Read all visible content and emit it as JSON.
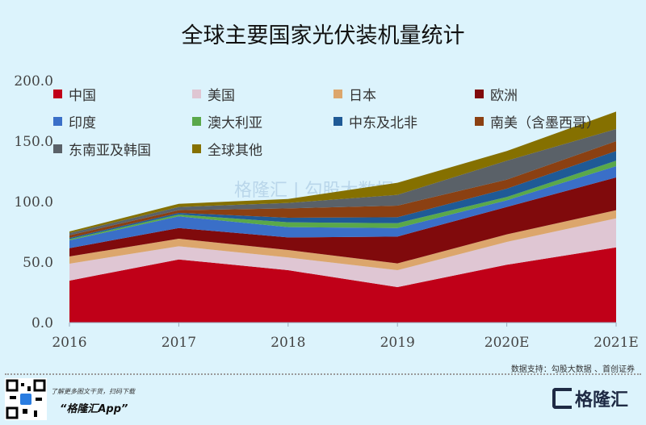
{
  "title": "全球主要国家光伏装机量统计",
  "chart_data": {
    "type": "area",
    "stacked": true,
    "title": "全球主要国家光伏装机量统计",
    "categories": [
      "2016",
      "2017",
      "2018",
      "2019",
      "2020E",
      "2021E"
    ],
    "ylim": [
      0,
      200
    ],
    "yticks": [
      "0.0",
      "50.0",
      "100.0",
      "150.0",
      "200.0"
    ],
    "grid": false,
    "legend_position": "top-left",
    "series": [
      {
        "name": "中国",
        "color": "#c00018",
        "values": [
          34.7,
          52.2,
          43.3,
          29.3,
          47.8,
          62.2
        ]
      },
      {
        "name": "美国",
        "color": "#dfc6d3",
        "values": [
          14.0,
          10.9,
          10.5,
          14.0,
          18.9,
          24.0
        ]
      },
      {
        "name": "日本",
        "color": "#dca66c",
        "values": [
          6.0,
          6.2,
          6.2,
          5.6,
          6.2,
          6.7
        ]
      },
      {
        "name": "欧洲",
        "color": "#800a0c",
        "values": [
          6.8,
          8.9,
          10.4,
          22.2,
          22.7,
          27.1
        ]
      },
      {
        "name": "印度",
        "color": "#3a6fc8",
        "values": [
          6.5,
          9.6,
          8.5,
          7.1,
          5.5,
          9.3
        ]
      },
      {
        "name": "澳大利亚",
        "color": "#5aa84a",
        "values": [
          1.0,
          1.5,
          4.0,
          4.0,
          2.7,
          4.5
        ]
      },
      {
        "name": "中东及北非",
        "color": "#1f5a96",
        "values": [
          1.0,
          1.4,
          3.8,
          4.9,
          6.9,
          8.0
        ]
      },
      {
        "name": "南美（含墨西哥）",
        "color": "#8b4012",
        "values": [
          2.2,
          2.2,
          7.7,
          9.6,
          7.5,
          8.2
        ]
      },
      {
        "name": "东南亚及韩国",
        "color": "#5a6168",
        "values": [
          1.8,
          2.7,
          4.5,
          8.9,
          15.6,
          10.0
        ]
      },
      {
        "name": "全球其他",
        "color": "#857000",
        "values": [
          1.3,
          2.6,
          3.3,
          10.0,
          8.0,
          14.4
        ]
      }
    ]
  },
  "watermark": "格隆汇 | 勾股大数据",
  "source": "数据支持：勾股大数据 、首创证券",
  "footer": {
    "promo_line1": "了解更多图文干货，扫码下载",
    "promo_line2": "“格隆汇App”",
    "logo_text": "格隆汇"
  }
}
